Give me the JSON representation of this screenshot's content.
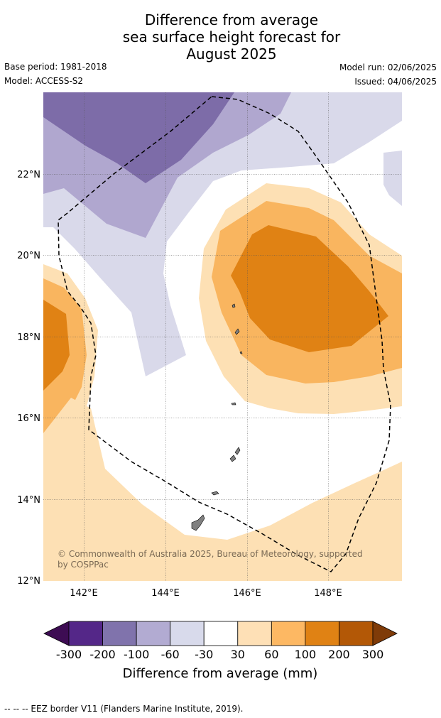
{
  "header": {
    "title_lines": [
      "Difference from average",
      "sea surface height forecast for",
      "August 2025"
    ],
    "base_period": "Base period: 1981-2018",
    "model": "Model: ACCESS-S2",
    "model_run": "Model run: 02/06/2025",
    "issued": "Issued: 04/06/2025"
  },
  "map": {
    "lat_labels": [
      "22°N",
      "20°N",
      "18°N",
      "16°N",
      "14°N",
      "12°N"
    ],
    "lon_labels": [
      "142°E",
      "144°E",
      "146°E",
      "148°E"
    ],
    "copyright": "© Commonwealth of Australia 2025, Bureau of Meteorology, supported by COSPPac",
    "colors": {
      "purple_dark": "#7d6ca8",
      "purple_mid": "#b0a7cf",
      "purple_light": "#d9d9ea",
      "orange_light": "#fde0b4",
      "orange_mid": "#f9b55f",
      "orange_dark": "#e08214",
      "island": "#808080"
    }
  },
  "legend": {
    "title": "Difference from average (mm)",
    "ticks": [
      "-300",
      "-200",
      "-100",
      "-60",
      "-30",
      "30",
      "60",
      "100",
      "200",
      "300"
    ],
    "colors": [
      "#3d0c53",
      "#542788",
      "#8073ac",
      "#b2abd2",
      "#d8daeb",
      "#ffffff",
      "#fee0b6",
      "#fdb863",
      "#e08214",
      "#b35806",
      "#7f3b08"
    ]
  },
  "footer": {
    "eez_note": "--  --  -- EEZ border V11 (Flanders Marine Institute, 2019)."
  }
}
